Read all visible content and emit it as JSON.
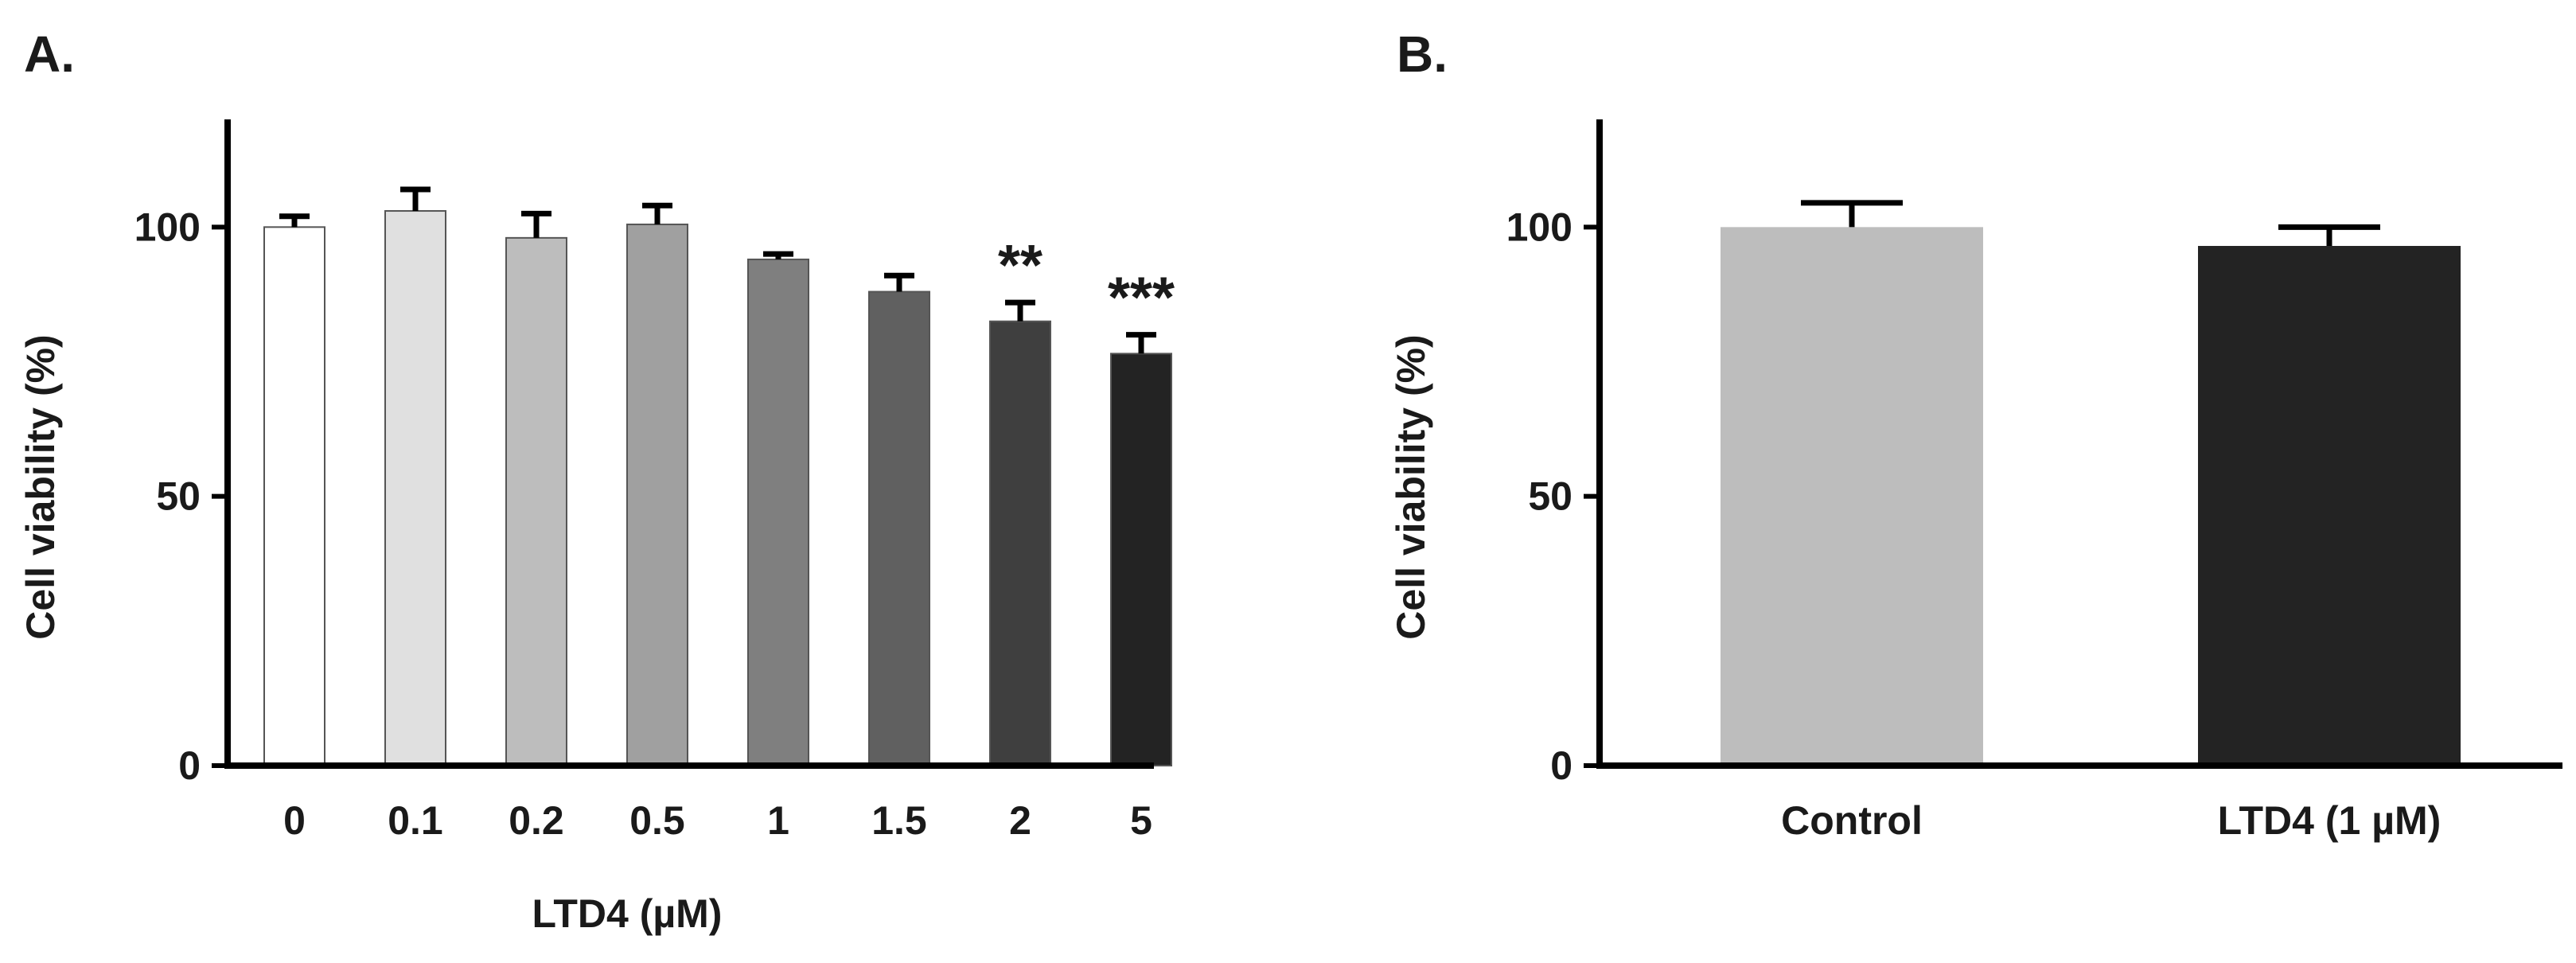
{
  "chart_data": [
    {
      "panel": "A.",
      "type": "bar",
      "categories": [
        "0",
        "0.1",
        "0.2",
        "0.5",
        "1",
        "1.5",
        "2",
        "5"
      ],
      "values": [
        100,
        103,
        98,
        100.5,
        94,
        88,
        82.5,
        76.5
      ],
      "errors": [
        2,
        4,
        4.5,
        3.5,
        1,
        3,
        3.5,
        3.5
      ],
      "colors": [
        "#ffffff",
        "#e0e0e0",
        "#bdbdbd",
        "#a0a0a0",
        "#7f7f7f",
        "#606060",
        "#3f3f3f",
        "#232323"
      ],
      "significance": [
        "",
        "",
        "",
        "",
        "",
        "",
        "**",
        "***"
      ],
      "xlabel": "LTD4 (µM)",
      "ylabel": "Cell viability (%)",
      "ylim": [
        0,
        120
      ],
      "yticks": [
        0,
        50,
        100
      ],
      "grid": false
    },
    {
      "panel": "B.",
      "type": "bar",
      "categories": [
        "Control",
        "LTD4 (1 µM)"
      ],
      "values": [
        100,
        96.5
      ],
      "errors": [
        4.5,
        3.5
      ],
      "colors": [
        "#bdbdbd",
        "#232323"
      ],
      "significance": [
        "",
        ""
      ],
      "xlabel": "",
      "ylabel": "Cell viability (%)",
      "ylim": [
        0,
        120
      ],
      "yticks": [
        0,
        50,
        100
      ],
      "grid": false
    }
  ]
}
